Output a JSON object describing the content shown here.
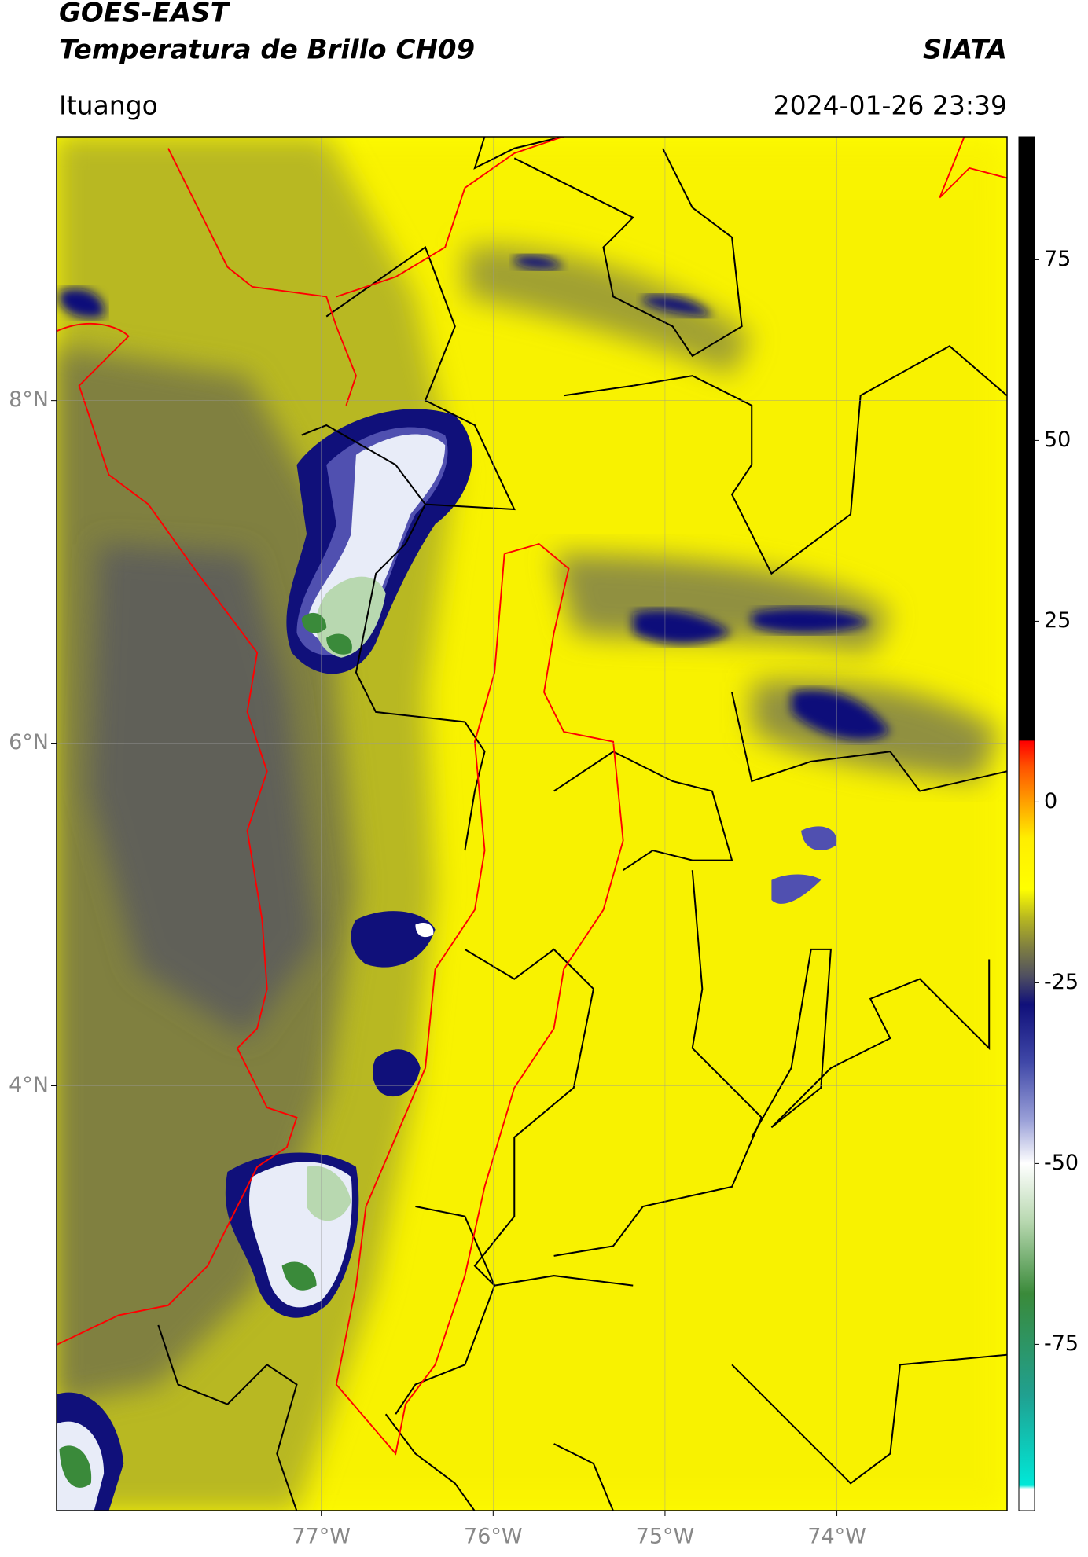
{
  "header": {
    "title": "GOES-EAST",
    "subtitle": "Temperatura de Brillo CH09",
    "source": "SIATA",
    "location": "Ituango",
    "datetime": "2024-01-26 23:39"
  },
  "map": {
    "xlim": [
      -78.54,
      -73.01
    ],
    "ylim": [
      1.52,
      9.54
    ],
    "xticks": [
      {
        "value": -77,
        "label": "77°W"
      },
      {
        "value": -76,
        "label": "76°W"
      },
      {
        "value": -75,
        "label": "75°W"
      },
      {
        "value": -74,
        "label": "74°W"
      }
    ],
    "yticks": [
      {
        "value": 4,
        "label": "4°N"
      },
      {
        "value": 6,
        "label": "6°N"
      },
      {
        "value": 8,
        "label": "8°N"
      }
    ],
    "grid": true
  },
  "colorbar": {
    "lim": [
      -98,
      92
    ],
    "ticks": [
      -75,
      -50,
      -25,
      0,
      25,
      50,
      75
    ],
    "colormap": [
      {
        "value": -98,
        "color": "#ffffff"
      },
      {
        "value": -95,
        "color": "#ffffff"
      },
      {
        "value": -94.5,
        "color": "#00e8d8"
      },
      {
        "value": -82,
        "color": "#20a090"
      },
      {
        "value": -68,
        "color": "#3a8a3a"
      },
      {
        "value": -58,
        "color": "#b8d8b0"
      },
      {
        "value": -50,
        "color": "#ffffff"
      },
      {
        "value": -44,
        "color": "#9aa0d8"
      },
      {
        "value": -36,
        "color": "#4048a8"
      },
      {
        "value": -28,
        "color": "#10107a"
      },
      {
        "value": -24,
        "color": "#505060"
      },
      {
        "value": -20,
        "color": "#808040"
      },
      {
        "value": -16,
        "color": "#b8b820"
      },
      {
        "value": -12,
        "color": "#ffff00"
      },
      {
        "value": -5,
        "color": "#ffee00"
      },
      {
        "value": 0,
        "color": "#ffa000"
      },
      {
        "value": 5,
        "color": "#ff5000"
      },
      {
        "value": 8.4,
        "color": "#ff0000"
      },
      {
        "value": 8.6,
        "color": "#000000"
      },
      {
        "value": 92,
        "color": "#000000"
      }
    ]
  }
}
